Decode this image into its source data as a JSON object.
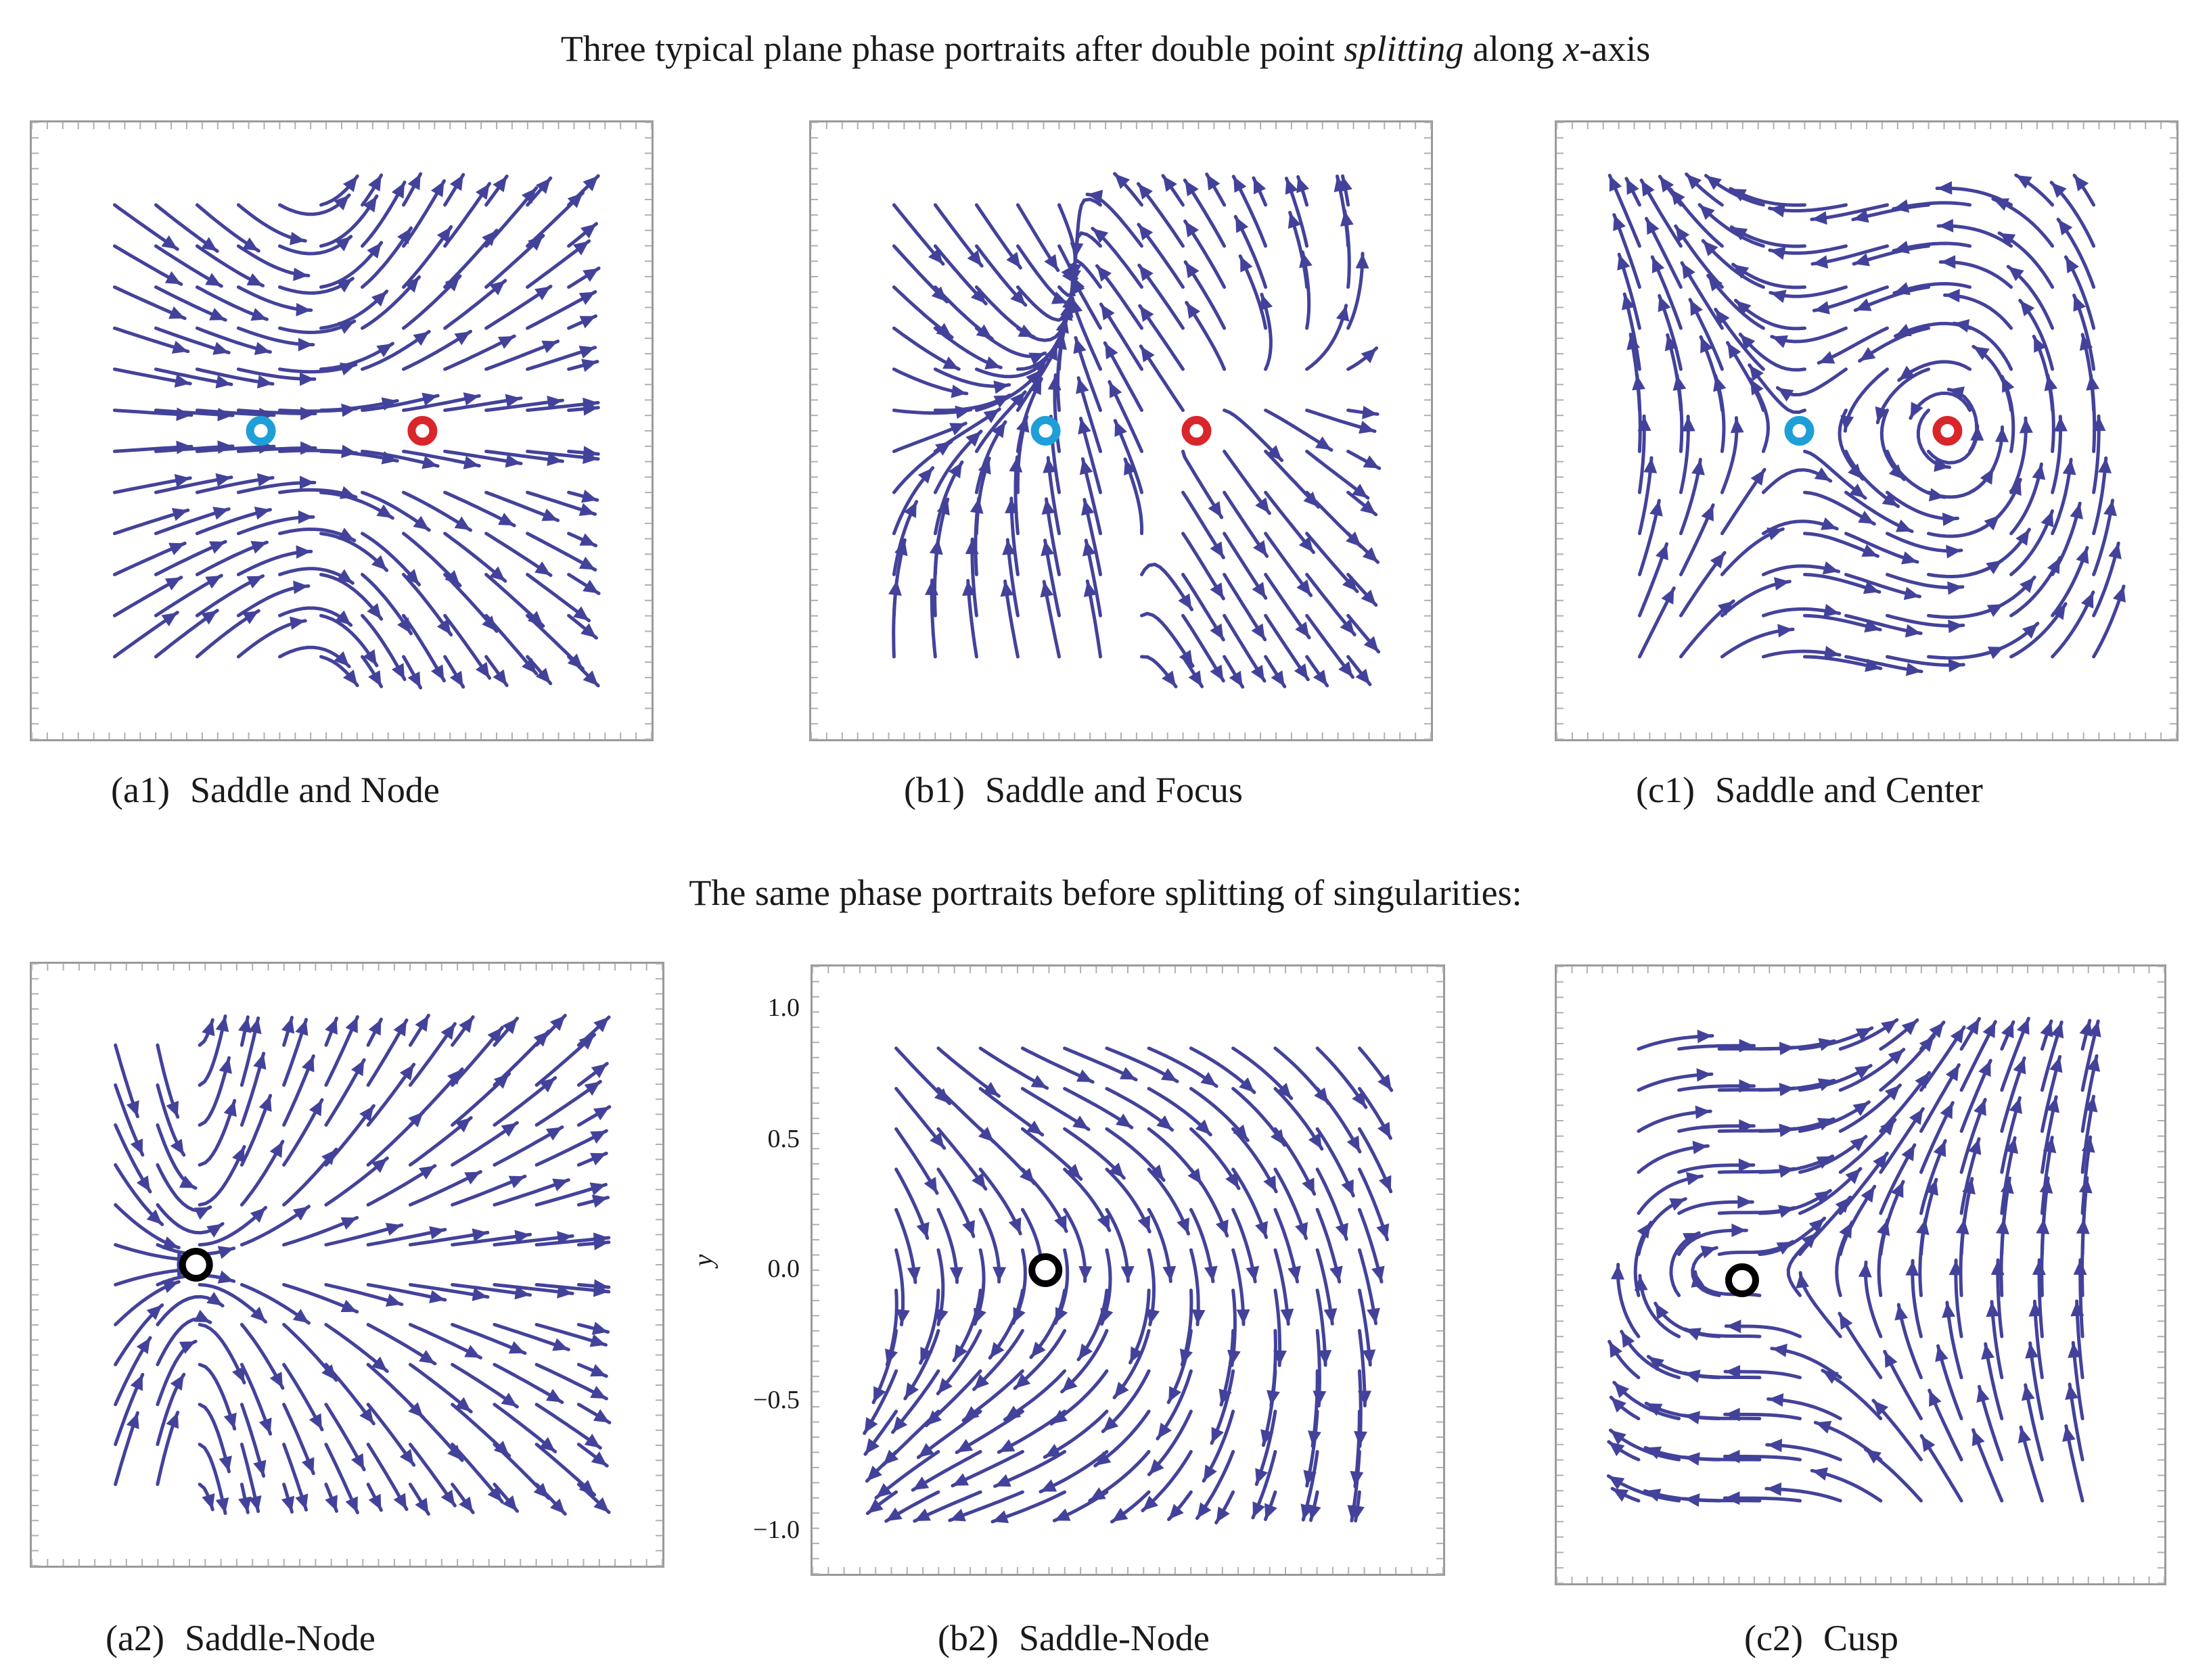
{
  "title": {
    "pre": "Three typical plane phase portraits after double point ",
    "italic": "splitting",
    "mid": " along ",
    "axis_var": "x",
    "post": "-axis"
  },
  "subtitle": "The same phase portraits before splitting of singularities:",
  "colors": {
    "stream": "#43429a",
    "saddle": "#1e9fd8",
    "node": "#d9262b",
    "degenerate": "#000000",
    "frame": "#9a9a9a"
  },
  "panels": [
    {
      "id": "a1",
      "tag": "(a1)",
      "label": "Saddle and Node",
      "field": "saddle-node-split"
    },
    {
      "id": "b1",
      "tag": "(b1)",
      "label": "Saddle and Focus",
      "field": "saddle-focus-split"
    },
    {
      "id": "c1",
      "tag": "(c1)",
      "label": "Saddle and Center",
      "field": "saddle-center-split"
    },
    {
      "id": "a2",
      "tag": "(a2)",
      "label": "Saddle-Node",
      "field": "saddle-node"
    },
    {
      "id": "b2",
      "tag": "(b2)",
      "label": "Saddle-Node",
      "field": "saddle-node-tilted",
      "yaxis": {
        "label": "y",
        "ticks": [
          "1.0",
          "0.5",
          "0.0",
          "−0.5",
          "−1.0"
        ]
      }
    },
    {
      "id": "c2",
      "tag": "(c2)",
      "label": "Cusp",
      "field": "cusp"
    }
  ]
}
